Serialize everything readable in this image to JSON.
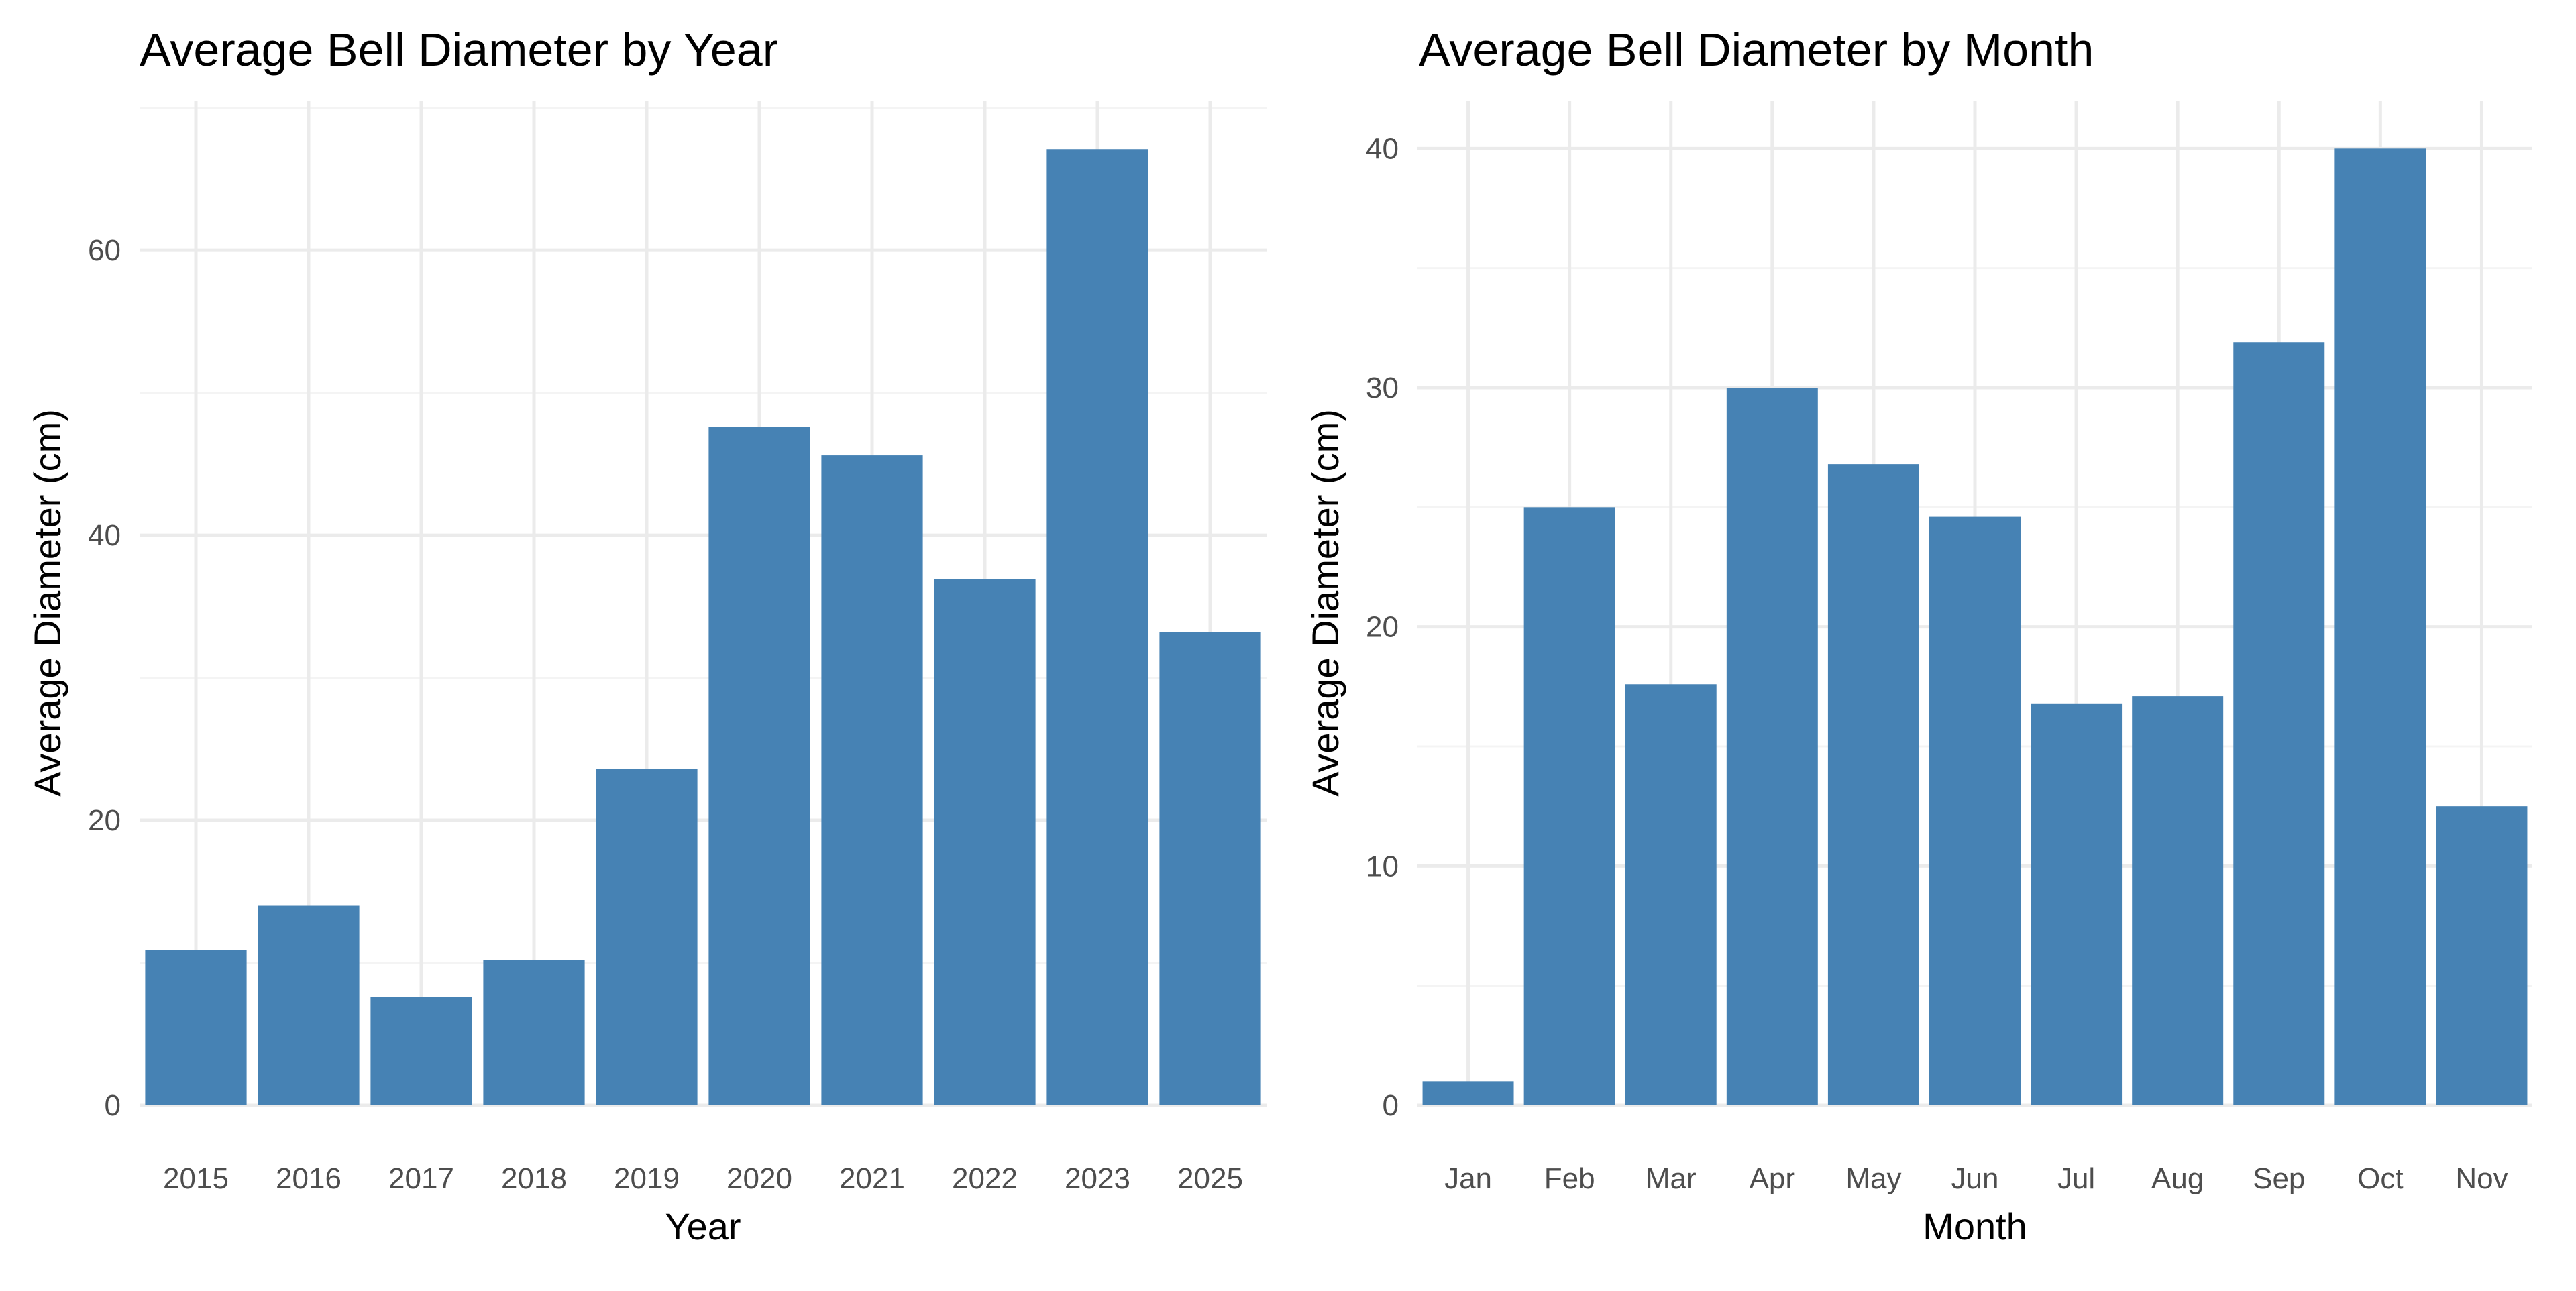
{
  "colors": {
    "bar": "#4682B4",
    "grid_major": "#EBEBEB",
    "grid_minor": "#F4F4F4",
    "tick_text": "#4D4D4D",
    "title_text": "#000000"
  },
  "chart_data": [
    {
      "type": "bar",
      "title": "Average Bell Diameter by Year",
      "xlabel": "Year",
      "ylabel": "Average Diameter (cm)",
      "categories": [
        "2015",
        "2016",
        "2017",
        "2018",
        "2019",
        "2020",
        "2021",
        "2022",
        "2023",
        "2025"
      ],
      "values": [
        10.9,
        14.0,
        7.6,
        10.2,
        23.6,
        47.6,
        45.6,
        36.9,
        67.1,
        33.2
      ],
      "ylim": [
        0,
        70.5
      ],
      "yticks": [
        0,
        20,
        40,
        60
      ],
      "grid": true,
      "legend": "none"
    },
    {
      "type": "bar",
      "title": "Average Bell Diameter by Month",
      "xlabel": "Month",
      "ylabel": "Average Diameter (cm)",
      "categories": [
        "Jan",
        "Feb",
        "Mar",
        "Apr",
        "May",
        "Jun",
        "Jul",
        "Aug",
        "Sep",
        "Oct",
        "Nov"
      ],
      "values": [
        1.0,
        25.0,
        17.6,
        30.0,
        26.8,
        24.6,
        16.8,
        17.1,
        31.9,
        40.0,
        12.5
      ],
      "ylim": [
        0,
        42
      ],
      "yticks": [
        0,
        10,
        20,
        30,
        40
      ],
      "grid": true,
      "legend": "none"
    }
  ]
}
